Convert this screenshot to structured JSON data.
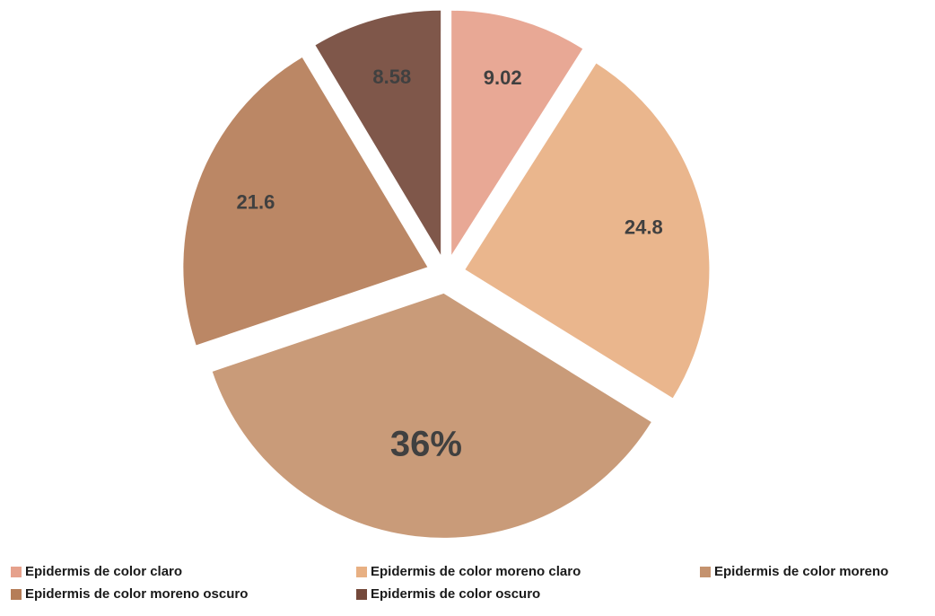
{
  "chart_data": {
    "type": "pie",
    "categories": [
      "Epidermis de color claro",
      "Epidermis de color moreno claro",
      "Epidermis de color moreno",
      "Epidermis de color moreno oscuro",
      "Epidermis de color oscuro"
    ],
    "values": [
      9.02,
      24.8,
      36,
      21.6,
      8.58
    ],
    "value_labels": [
      "9.02",
      "24.8",
      "36%",
      "21.6",
      "8.58"
    ],
    "colors": [
      "#e6a18c",
      "#e8b083",
      "#c4926e",
      "#b57d58",
      "#74493b"
    ]
  }
}
